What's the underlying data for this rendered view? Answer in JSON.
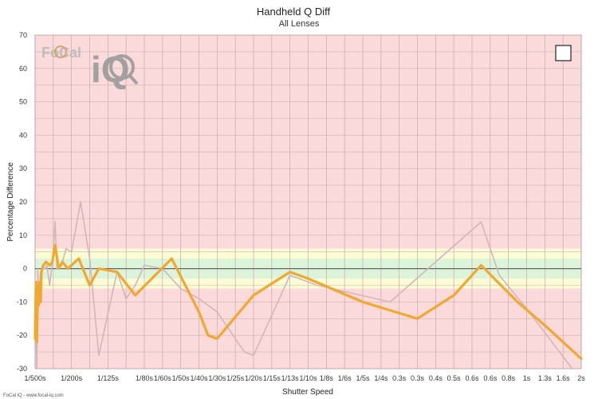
{
  "chart_data": {
    "type": "line",
    "title": "Handheld Q Diff",
    "subtitle": "All Lenses",
    "xlabel": "Shutter Speed",
    "ylabel": "Percentage Difference",
    "ylim": [
      -30,
      70
    ],
    "yticks": [
      -30,
      -20,
      -10,
      0,
      10,
      20,
      30,
      40,
      50,
      60,
      70
    ],
    "grid": true,
    "categories": [
      "1/500s",
      "",
      "1/200s",
      "",
      "1/125s",
      "",
      "1/80s",
      "1/60s",
      "1/50s",
      "1/40s",
      "1/30s",
      "1/25s",
      "1/20s",
      "1/15s",
      "1/13s",
      "1/10s",
      "1/8s",
      "1/6s",
      "1/5s",
      "1/4s",
      "0.3s",
      "0.3s",
      "0.4s",
      "0.5s",
      "0.6s",
      "0.6s",
      "0.8s",
      "1s",
      "1.3s",
      "1.6s",
      "2s"
    ],
    "bands": [
      {
        "name": "red",
        "from": -30,
        "to": 70,
        "color": "#fbdadb"
      },
      {
        "name": "yellow",
        "from": -6,
        "to": 6,
        "color": "#fbfbd5"
      },
      {
        "name": "green",
        "from": -3,
        "to": 3,
        "color": "#dcf5da"
      }
    ],
    "series": [
      {
        "color": "#d2b6b9",
        "x": [
          0,
          0.05,
          0.1,
          0.15,
          0.2,
          0.3,
          0.4,
          0.55,
          0.65,
          0.8,
          0.95,
          1.1,
          1.2,
          1.3,
          1.45,
          1.7,
          2.0,
          2.5,
          3.0,
          3.5,
          4.5,
          5.0,
          5.5,
          6.0,
          7.0,
          8.0,
          9.0,
          10.0,
          11.5,
          12.0,
          14.0,
          15.5,
          19.5,
          24.5,
          25.5,
          27.0,
          29.5
        ],
        "y": [
          -22,
          -18,
          -30,
          0,
          -10,
          -1,
          0,
          0,
          1,
          -5,
          2,
          14,
          0,
          1,
          1,
          6,
          5,
          20,
          3,
          -26,
          -1,
          -9,
          -5,
          1,
          0,
          -6,
          -9,
          -13,
          -25,
          -26,
          -2,
          -5,
          -10,
          14,
          -2,
          -12,
          -30
        ]
      },
      {
        "color": "#f0a830",
        "x": [
          0,
          0.05,
          0.1,
          0.15,
          0.2,
          0.25,
          0.3,
          0.35,
          0.45,
          0.6,
          0.8,
          0.95,
          1.1,
          1.3,
          1.5,
          1.8,
          2.4,
          3.0,
          3.5,
          4.5,
          5.5,
          7.5,
          9.0,
          9.5,
          10.0,
          12.0,
          14.0,
          15.0,
          18.0,
          21.0,
          23.0,
          24.5,
          26.5,
          28.0,
          30.0
        ],
        "y": [
          -21,
          -4,
          -22,
          -5,
          -11,
          -4,
          -10,
          -1,
          1,
          2,
          1,
          2,
          7,
          0,
          2,
          0,
          3,
          -5,
          0,
          -1,
          -8,
          3,
          -13,
          -20,
          -21,
          -8,
          -1,
          -3,
          -10,
          -15,
          -8,
          1,
          -10,
          -17,
          -27
        ]
      }
    ]
  },
  "legend_box": "",
  "watermark": {
    "brand": "FoCal",
    "mark": "iQ"
  },
  "footer": "FoCal iQ - www.focal-iq.com"
}
